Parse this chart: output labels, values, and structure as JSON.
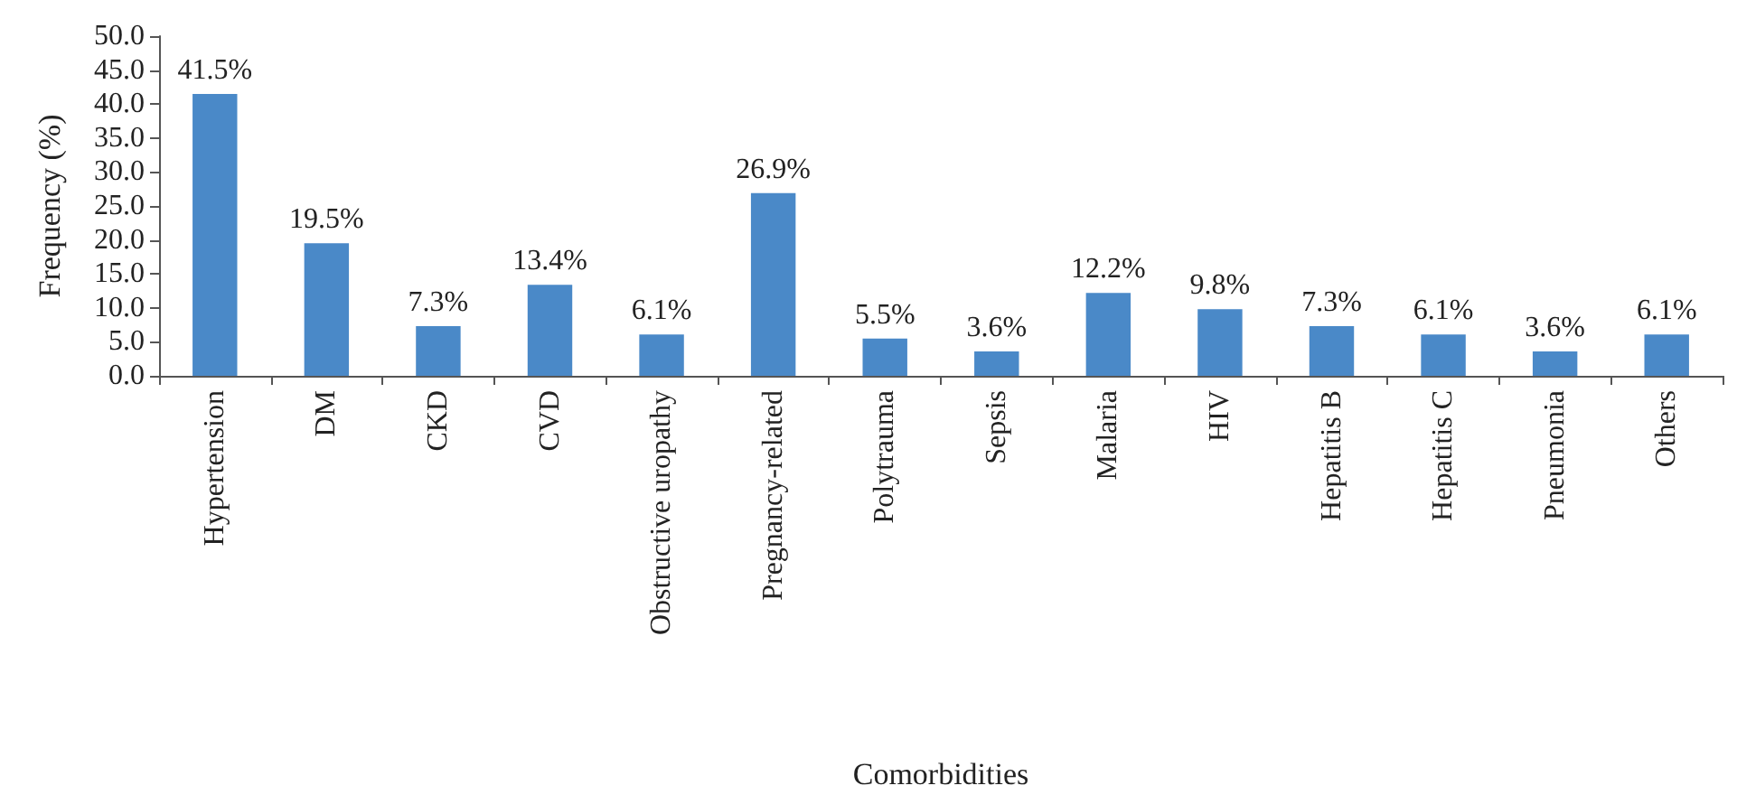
{
  "chart_data": {
    "type": "bar",
    "xlabel": "Comorbidities",
    "ylabel": "Frequency (%)",
    "categories": [
      "Hypertension",
      "DM",
      "CKD",
      "CVD",
      "Obstructive uropathy",
      "Pregnancy-related",
      "Polytrauma",
      "Sepsis",
      "Malaria",
      "HIV",
      "Hepatitis B",
      "Hepatitis C",
      "Pneumonia",
      "Others"
    ],
    "values": [
      41.5,
      19.5,
      7.3,
      13.4,
      6.1,
      26.9,
      5.5,
      3.6,
      12.2,
      9.8,
      7.3,
      6.1,
      3.6,
      6.1
    ],
    "value_labels": [
      "41.5%",
      "19.5%",
      "7.3%",
      "13.4%",
      "6.1%",
      "26.9%",
      "5.5%",
      "3.6%",
      "12.2%",
      "9.8%",
      "7.3%",
      "6.1%",
      "3.6%",
      "6.1%"
    ],
    "color": "#4a89c8",
    "ylim": [
      0,
      50
    ],
    "yticks": [
      {
        "value": 0,
        "label": "0.0"
      },
      {
        "value": 5,
        "label": "5.0"
      },
      {
        "value": 10,
        "label": "10.0"
      },
      {
        "value": 15,
        "label": "15.0"
      },
      {
        "value": 20,
        "label": "20.0"
      },
      {
        "value": 25,
        "label": "25.0"
      },
      {
        "value": 30,
        "label": "30.0"
      },
      {
        "value": 35,
        "label": "35.0"
      },
      {
        "value": 40,
        "label": "40.0"
      },
      {
        "value": 45,
        "label": "45.0"
      },
      {
        "value": 50,
        "label": "50.0"
      }
    ],
    "grid": false
  }
}
